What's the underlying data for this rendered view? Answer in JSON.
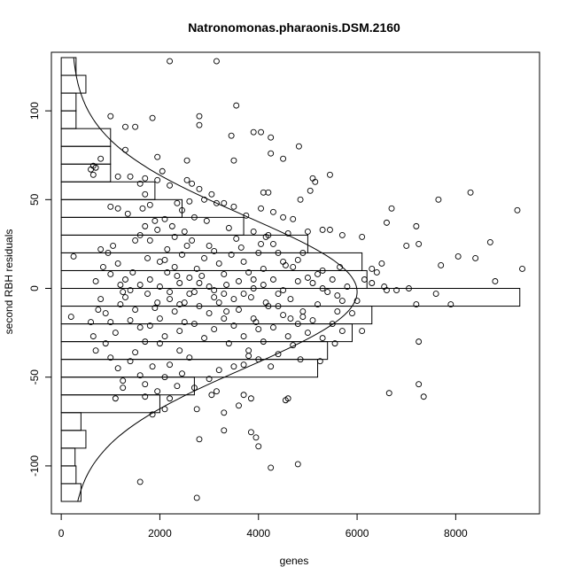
{
  "chart_data": {
    "type": "scatter",
    "title": "Natronomonas.pharaonis.DSM.2160",
    "xlabel": "genes",
    "ylabel": "second RBH residuals",
    "xlim": [
      -200,
      9700
    ],
    "ylim": [
      -127,
      133
    ],
    "x_ticks": [
      {
        "value": 0,
        "label": "0"
      },
      {
        "value": 2000,
        "label": "2000"
      },
      {
        "value": 4000,
        "label": "4000"
      },
      {
        "value": 6000,
        "label": "6000"
      },
      {
        "value": 8000,
        "label": "8000"
      }
    ],
    "y_ticks": [
      {
        "value": -100,
        "label": "-100"
      },
      {
        "value": -50,
        "label": "-50"
      },
      {
        "value": 0,
        "label": "0"
      },
      {
        "value": 50,
        "label": "50"
      },
      {
        "value": 100,
        "label": "100"
      }
    ],
    "grid": false,
    "legend": "none",
    "point_style": "open-circle",
    "points": [
      [
        2200,
        128
      ],
      [
        3150,
        128
      ],
      [
        3550,
        103
      ],
      [
        2800,
        97
      ],
      [
        3900,
        88
      ],
      [
        4050,
        88
      ],
      [
        2800,
        92
      ],
      [
        1000,
        97
      ],
      [
        1850,
        96
      ],
      [
        1300,
        91
      ],
      [
        1500,
        91
      ],
      [
        3450,
        86
      ],
      [
        4250,
        85
      ],
      [
        4500,
        73
      ],
      [
        4820,
        80
      ],
      [
        4250,
        76
      ],
      [
        3500,
        72
      ],
      [
        1950,
        74
      ],
      [
        2550,
        72
      ],
      [
        1300,
        78
      ],
      [
        650,
        69
      ],
      [
        700,
        68
      ],
      [
        800,
        73
      ],
      [
        600,
        67
      ],
      [
        650,
        64
      ],
      [
        1150,
        63
      ],
      [
        1400,
        63
      ],
      [
        1700,
        62
      ],
      [
        1950,
        61
      ],
      [
        2050,
        66
      ],
      [
        2200,
        58
      ],
      [
        2550,
        61
      ],
      [
        2650,
        59
      ],
      [
        2800,
        56
      ],
      [
        3050,
        53
      ],
      [
        3300,
        48
      ],
      [
        3500,
        46
      ],
      [
        4100,
        54
      ],
      [
        4200,
        54
      ],
      [
        4850,
        50
      ],
      [
        5100,
        62
      ],
      [
        5150,
        60
      ],
      [
        5450,
        64
      ],
      [
        5050,
        55
      ],
      [
        1600,
        59
      ],
      [
        1700,
        53
      ],
      [
        1800,
        47
      ],
      [
        1650,
        45
      ],
      [
        1000,
        46
      ],
      [
        1150,
        45
      ],
      [
        1350,
        42
      ],
      [
        2350,
        48
      ],
      [
        2450,
        44
      ],
      [
        2600,
        49
      ],
      [
        2900,
        50
      ],
      [
        3150,
        48
      ],
      [
        3750,
        41
      ],
      [
        4050,
        45
      ],
      [
        4500,
        40
      ],
      [
        4700,
        39
      ],
      [
        5000,
        32
      ],
      [
        5300,
        33
      ],
      [
        5450,
        33
      ],
      [
        5700,
        30
      ],
      [
        6100,
        29
      ],
      [
        6700,
        45
      ],
      [
        6600,
        37
      ],
      [
        7000,
        24
      ],
      [
        7250,
        25
      ],
      [
        7200,
        35
      ],
      [
        7650,
        50
      ],
      [
        8300,
        54
      ],
      [
        9250,
        44
      ],
      [
        8700,
        26
      ],
      [
        7700,
        13
      ],
      [
        8050,
        18
      ],
      [
        8400,
        17
      ],
      [
        8800,
        4
      ],
      [
        9350,
        11
      ],
      [
        7200,
        -9
      ],
      [
        7600,
        -3
      ],
      [
        7900,
        -9
      ],
      [
        6650,
        -59
      ],
      [
        7250,
        -54
      ],
      [
        7350,
        -61
      ],
      [
        7250,
        -30
      ],
      [
        200,
        -16
      ],
      [
        250,
        18
      ],
      [
        800,
        22
      ],
      [
        850,
        12
      ],
      [
        950,
        20
      ],
      [
        1050,
        24
      ],
      [
        1150,
        14
      ],
      [
        1250,
        -2
      ],
      [
        1300,
        5
      ],
      [
        1500,
        27
      ],
      [
        1600,
        30
      ],
      [
        1700,
        35
      ],
      [
        1750,
        17
      ],
      [
        1900,
        38
      ],
      [
        2000,
        15
      ],
      [
        2100,
        16
      ],
      [
        2150,
        22
      ],
      [
        2250,
        35
      ],
      [
        2300,
        12
      ],
      [
        2350,
        7
      ],
      [
        2450,
        19
      ],
      [
        2550,
        24
      ],
      [
        2650,
        27
      ],
      [
        2750,
        11
      ],
      [
        2800,
        3
      ],
      [
        2900,
        17
      ],
      [
        3000,
        24
      ],
      [
        3100,
        21
      ],
      [
        3200,
        14
      ],
      [
        3300,
        8
      ],
      [
        3350,
        2
      ],
      [
        3450,
        19
      ],
      [
        3550,
        28
      ],
      [
        3650,
        23
      ],
      [
        3700,
        15
      ],
      [
        3800,
        9
      ],
      [
        3900,
        5
      ],
      [
        4000,
        20
      ],
      [
        4050,
        25
      ],
      [
        4100,
        11
      ],
      [
        4150,
        29
      ],
      [
        4200,
        30
      ],
      [
        4300,
        25
      ],
      [
        4400,
        20
      ],
      [
        4500,
        15
      ],
      [
        4550,
        13
      ],
      [
        4700,
        12
      ],
      [
        4800,
        16
      ],
      [
        4900,
        20
      ],
      [
        5000,
        6
      ],
      [
        5100,
        3
      ],
      [
        5200,
        8
      ],
      [
        5300,
        0
      ],
      [
        5400,
        -2
      ],
      [
        5500,
        5
      ],
      [
        5600,
        -4
      ],
      [
        5700,
        -7
      ],
      [
        5800,
        1
      ],
      [
        5900,
        -14
      ],
      [
        6000,
        -7
      ],
      [
        6150,
        5
      ],
      [
        6300,
        3
      ],
      [
        6400,
        9
      ],
      [
        6550,
        1
      ],
      [
        6600,
        -1
      ],
      [
        700,
        4
      ],
      [
        800,
        -6
      ],
      [
        900,
        -14
      ],
      [
        1000,
        -19
      ],
      [
        1100,
        -25
      ],
      [
        1200,
        -9
      ],
      [
        1300,
        -5
      ],
      [
        1400,
        -18
      ],
      [
        1500,
        -12
      ],
      [
        1600,
        -22
      ],
      [
        1700,
        -30
      ],
      [
        1800,
        -21
      ],
      [
        1900,
        -11
      ],
      [
        2000,
        -17
      ],
      [
        2100,
        -27
      ],
      [
        2200,
        -6
      ],
      [
        2300,
        -13
      ],
      [
        2400,
        -24
      ],
      [
        2500,
        -19
      ],
      [
        2600,
        -3
      ],
      [
        2700,
        -20
      ],
      [
        2800,
        -10
      ],
      [
        2900,
        -28
      ],
      [
        3000,
        -14
      ],
      [
        3100,
        -23
      ],
      [
        3200,
        -8
      ],
      [
        3300,
        -17
      ],
      [
        3400,
        -31
      ],
      [
        3500,
        -21
      ],
      [
        3600,
        -12
      ],
      [
        3700,
        -27
      ],
      [
        3800,
        -35
      ],
      [
        3900,
        -17
      ],
      [
        4000,
        -23
      ],
      [
        4100,
        -30
      ],
      [
        4200,
        -10
      ],
      [
        4300,
        -22
      ],
      [
        4400,
        -37
      ],
      [
        4500,
        -15
      ],
      [
        4600,
        -27
      ],
      [
        4700,
        -32
      ],
      [
        4800,
        -20
      ],
      [
        4900,
        -13
      ],
      [
        5000,
        -25
      ],
      [
        5100,
        -18
      ],
      [
        5300,
        -28
      ],
      [
        5500,
        -20
      ],
      [
        5700,
        -24
      ],
      [
        6100,
        -24
      ],
      [
        600,
        -19
      ],
      [
        650,
        -27
      ],
      [
        700,
        -35
      ],
      [
        750,
        -12
      ],
      [
        900,
        -31
      ],
      [
        1000,
        -39
      ],
      [
        1150,
        -45
      ],
      [
        1250,
        -52
      ],
      [
        1400,
        -41
      ],
      [
        1500,
        -36
      ],
      [
        1600,
        -49
      ],
      [
        1700,
        -54
      ],
      [
        1850,
        -44
      ],
      [
        1950,
        -58
      ],
      [
        2100,
        -50
      ],
      [
        2200,
        -62
      ],
      [
        2350,
        -55
      ],
      [
        2450,
        -48
      ],
      [
        2700,
        -56
      ],
      [
        3050,
        -60
      ],
      [
        3150,
        -58
      ],
      [
        3300,
        -70
      ],
      [
        3600,
        -66
      ],
      [
        3700,
        -60
      ],
      [
        3850,
        -62
      ],
      [
        2750,
        -68
      ],
      [
        2100,
        -68
      ],
      [
        1850,
        -71
      ],
      [
        1700,
        -61
      ],
      [
        1250,
        -56
      ],
      [
        1100,
        -62
      ],
      [
        2800,
        -85
      ],
      [
        3300,
        -80
      ],
      [
        3950,
        -84
      ],
      [
        4000,
        -89
      ],
      [
        3850,
        -81
      ],
      [
        4250,
        -101
      ],
      [
        4800,
        -99
      ],
      [
        1600,
        -109
      ],
      [
        2750,
        -118
      ],
      [
        4550,
        -63
      ],
      [
        4600,
        -62
      ],
      [
        4250,
        -44
      ],
      [
        4850,
        -40
      ],
      [
        5250,
        -41
      ],
      [
        5550,
        -31
      ],
      [
        4000,
        -40
      ],
      [
        3800,
        -38
      ],
      [
        3700,
        -43
      ],
      [
        3500,
        -44
      ],
      [
        3200,
        -46
      ],
      [
        3000,
        -51
      ],
      [
        2600,
        -39
      ],
      [
        2400,
        -35
      ],
      [
        2200,
        -43
      ],
      [
        2000,
        -31
      ],
      [
        2500,
        -8
      ],
      [
        2700,
        -2
      ],
      [
        3000,
        1
      ],
      [
        3300,
        -3
      ],
      [
        3600,
        4
      ],
      [
        3850,
        -5
      ],
      [
        4150,
        -8
      ],
      [
        4400,
        -3
      ],
      [
        4650,
        -6
      ],
      [
        3900,
        32
      ],
      [
        4300,
        43
      ],
      [
        4600,
        31
      ],
      [
        3400,
        34
      ],
      [
        2950,
        38
      ],
      [
        2700,
        40
      ],
      [
        2500,
        32
      ],
      [
        2300,
        29
      ],
      [
        2100,
        39
      ],
      [
        1950,
        33
      ],
      [
        1800,
        27
      ],
      [
        1450,
        9
      ],
      [
        1000,
        8
      ],
      [
        1200,
        2
      ],
      [
        1400,
        -1
      ],
      [
        1600,
        2
      ],
      [
        1800,
        5
      ],
      [
        2000,
        1
      ],
      [
        2200,
        -2
      ],
      [
        2400,
        3
      ],
      [
        2600,
        6
      ],
      [
        3100,
        -1
      ],
      [
        3500,
        -6
      ],
      [
        3700,
        -3
      ],
      [
        4100,
        2
      ],
      [
        4300,
        5
      ],
      [
        4500,
        -1
      ],
      [
        4800,
        4
      ],
      [
        5300,
        10
      ],
      [
        5650,
        12
      ],
      [
        6300,
        11
      ],
      [
        2150,
        9
      ],
      [
        2850,
        7
      ],
      [
        3350,
        -13
      ],
      [
        3950,
        -19
      ],
      [
        4650,
        -17
      ],
      [
        5200,
        -9
      ],
      [
        1750,
        -3
      ],
      [
        1950,
        -8
      ],
      [
        2400,
        -9
      ],
      [
        3100,
        -5
      ],
      [
        3900,
        0
      ],
      [
        4400,
        -10
      ],
      [
        4900,
        -16
      ],
      [
        5600,
        -13
      ],
      [
        6500,
        14
      ],
      [
        6800,
        -1
      ],
      [
        7050,
        0
      ]
    ],
    "histogram": {
      "bin_width": 10,
      "bins": [
        [
          -120,
          -110,
          400
        ],
        [
          -110,
          -100,
          300
        ],
        [
          -100,
          -90,
          280
        ],
        [
          -90,
          -80,
          500
        ],
        [
          -80,
          -70,
          400
        ],
        [
          -70,
          -60,
          2000
        ],
        [
          -60,
          -50,
          2700
        ],
        [
          -50,
          -40,
          5200
        ],
        [
          -40,
          -30,
          5400
        ],
        [
          -30,
          -20,
          5900
        ],
        [
          -20,
          -10,
          6300
        ],
        [
          -10,
          0,
          9300
        ],
        [
          0,
          10,
          6200
        ],
        [
          10,
          20,
          6100
        ],
        [
          20,
          30,
          5000
        ],
        [
          30,
          40,
          3700
        ],
        [
          40,
          50,
          2450
        ],
        [
          50,
          60,
          1900
        ],
        [
          60,
          70,
          1000
        ],
        [
          70,
          80,
          1000
        ],
        [
          80,
          90,
          1000
        ],
        [
          90,
          100,
          300
        ],
        [
          100,
          110,
          300
        ],
        [
          110,
          120,
          500
        ],
        [
          120,
          130,
          300
        ]
      ]
    },
    "density_curve": {
      "mean": -2,
      "peak_x": 6000,
      "sd": 43,
      "base_x": 200
    }
  }
}
